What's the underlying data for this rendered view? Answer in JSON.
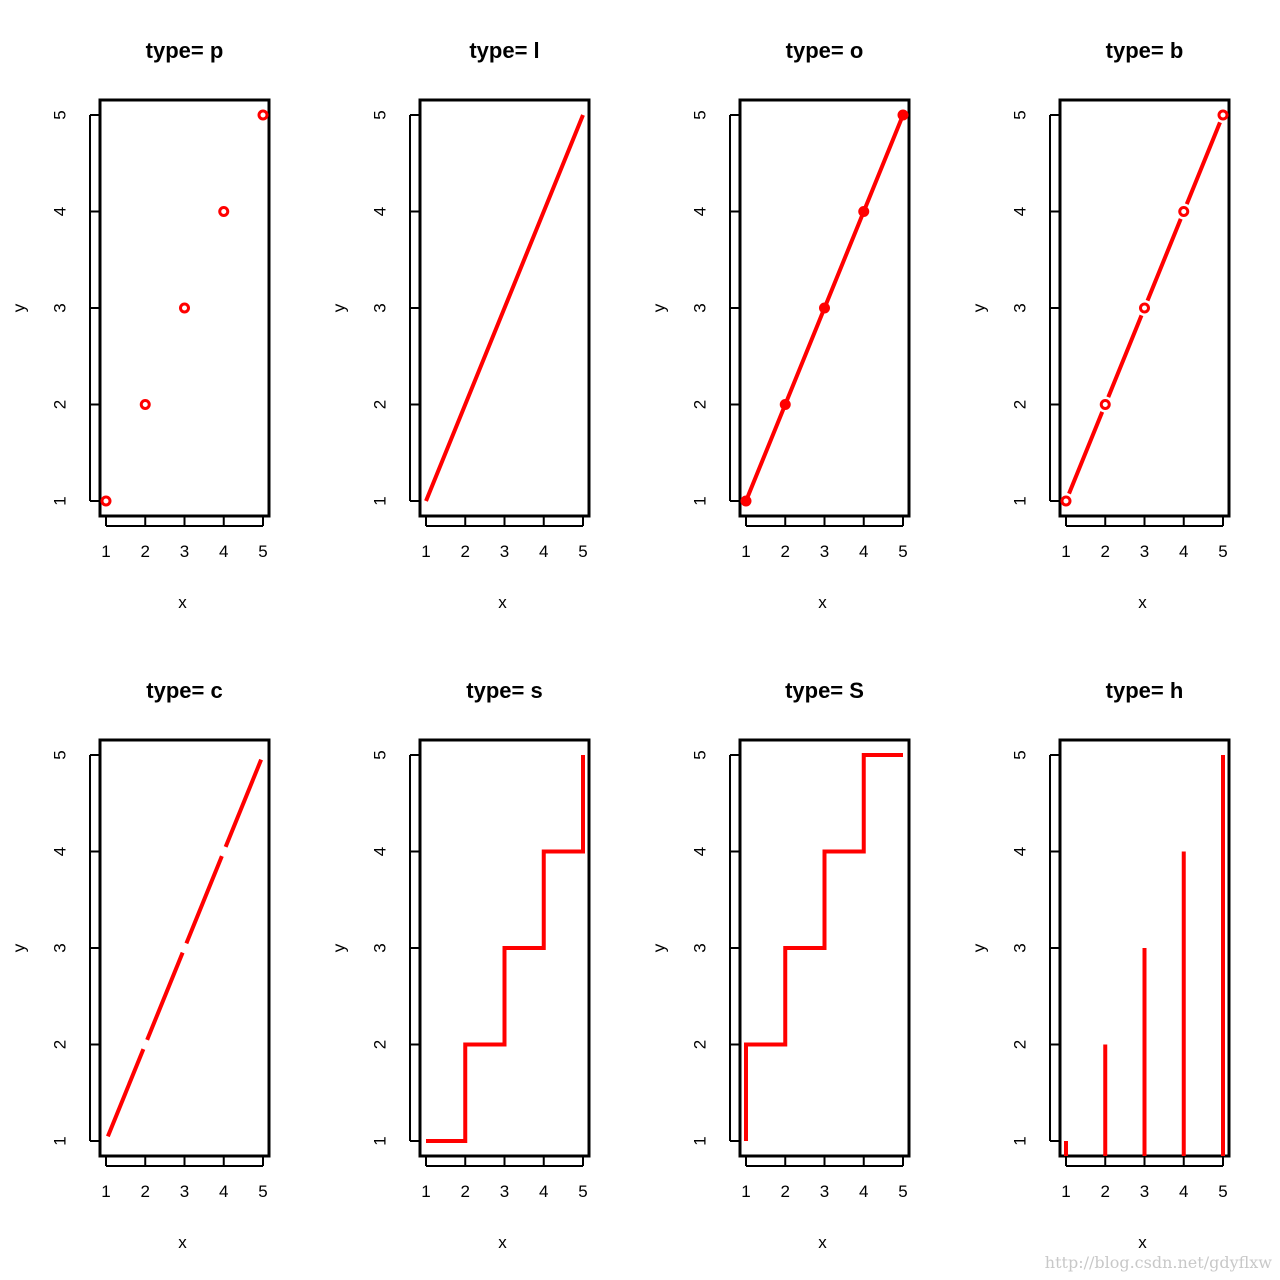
{
  "chart_data": [
    {
      "type": "scatter",
      "plot_type_code": "p",
      "title": "type= p",
      "xlabel": "x",
      "ylabel": "y",
      "x": [
        1,
        2,
        3,
        4,
        5
      ],
      "y": [
        1,
        2,
        3,
        4,
        5
      ],
      "xlim": [
        1,
        5
      ],
      "ylim": [
        1,
        5
      ],
      "xticks": [
        "1",
        "2",
        "3",
        "4",
        "5"
      ],
      "yticks": [
        "1",
        "2",
        "3",
        "4",
        "5"
      ],
      "color": "#ff0000"
    },
    {
      "type": "line",
      "plot_type_code": "l",
      "title": "type= l",
      "xlabel": "x",
      "ylabel": "y",
      "x": [
        1,
        2,
        3,
        4,
        5
      ],
      "y": [
        1,
        2,
        3,
        4,
        5
      ],
      "xlim": [
        1,
        5
      ],
      "ylim": [
        1,
        5
      ],
      "xticks": [
        "1",
        "2",
        "3",
        "4",
        "5"
      ],
      "yticks": [
        "1",
        "2",
        "3",
        "4",
        "5"
      ],
      "color": "#ff0000"
    },
    {
      "type": "line",
      "plot_type_code": "o",
      "title": "type= o",
      "xlabel": "x",
      "ylabel": "y",
      "x": [
        1,
        2,
        3,
        4,
        5
      ],
      "y": [
        1,
        2,
        3,
        4,
        5
      ],
      "xlim": [
        1,
        5
      ],
      "ylim": [
        1,
        5
      ],
      "xticks": [
        "1",
        "2",
        "3",
        "4",
        "5"
      ],
      "yticks": [
        "1",
        "2",
        "3",
        "4",
        "5"
      ],
      "color": "#ff0000"
    },
    {
      "type": "line",
      "plot_type_code": "b",
      "title": "type= b",
      "xlabel": "x",
      "ylabel": "y",
      "x": [
        1,
        2,
        3,
        4,
        5
      ],
      "y": [
        1,
        2,
        3,
        4,
        5
      ],
      "xlim": [
        1,
        5
      ],
      "ylim": [
        1,
        5
      ],
      "xticks": [
        "1",
        "2",
        "3",
        "4",
        "5"
      ],
      "yticks": [
        "1",
        "2",
        "3",
        "4",
        "5"
      ],
      "color": "#ff0000"
    },
    {
      "type": "line",
      "plot_type_code": "c",
      "title": "type= c",
      "xlabel": "x",
      "ylabel": "y",
      "x": [
        1,
        2,
        3,
        4,
        5
      ],
      "y": [
        1,
        2,
        3,
        4,
        5
      ],
      "xlim": [
        1,
        5
      ],
      "ylim": [
        1,
        5
      ],
      "xticks": [
        "1",
        "2",
        "3",
        "4",
        "5"
      ],
      "yticks": [
        "1",
        "2",
        "3",
        "4",
        "5"
      ],
      "color": "#ff0000"
    },
    {
      "type": "line",
      "plot_type_code": "s",
      "title": "type= s",
      "xlabel": "x",
      "ylabel": "y",
      "x": [
        1,
        2,
        3,
        4,
        5
      ],
      "y": [
        1,
        2,
        3,
        4,
        5
      ],
      "xlim": [
        1,
        5
      ],
      "ylim": [
        1,
        5
      ],
      "xticks": [
        "1",
        "2",
        "3",
        "4",
        "5"
      ],
      "yticks": [
        "1",
        "2",
        "3",
        "4",
        "5"
      ],
      "color": "#ff0000"
    },
    {
      "type": "line",
      "plot_type_code": "S",
      "title": "type= S",
      "xlabel": "x",
      "ylabel": "y",
      "x": [
        1,
        2,
        3,
        4,
        5
      ],
      "y": [
        1,
        2,
        3,
        4,
        5
      ],
      "xlim": [
        1,
        5
      ],
      "ylim": [
        1,
        5
      ],
      "xticks": [
        "1",
        "2",
        "3",
        "4",
        "5"
      ],
      "yticks": [
        "1",
        "2",
        "3",
        "4",
        "5"
      ],
      "color": "#ff0000"
    },
    {
      "type": "bar",
      "plot_type_code": "h",
      "title": "type= h",
      "xlabel": "x",
      "ylabel": "y",
      "x": [
        1,
        2,
        3,
        4,
        5
      ],
      "y": [
        1,
        2,
        3,
        4,
        5
      ],
      "xlim": [
        1,
        5
      ],
      "ylim": [
        1,
        5
      ],
      "xticks": [
        "1",
        "2",
        "3",
        "4",
        "5"
      ],
      "yticks": [
        "1",
        "2",
        "3",
        "4",
        "5"
      ],
      "color": "#ff0000"
    }
  ],
  "watermark": "http://blog.csdn.net/gdyflxw"
}
